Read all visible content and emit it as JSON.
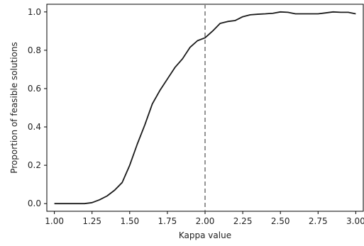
{
  "chart_data": {
    "type": "line",
    "xlabel": "Kappa value",
    "ylabel": "Proportion of feasible solutions",
    "xlim": [
      0.95,
      3.05
    ],
    "ylim": [
      -0.04,
      1.04
    ],
    "x_ticks": [
      "1.00",
      "1.25",
      "1.50",
      "1.75",
      "2.00",
      "2.25",
      "2.50",
      "2.75",
      "3.00"
    ],
    "y_ticks": [
      "0.0",
      "0.2",
      "0.4",
      "0.6",
      "0.8",
      "1.0"
    ],
    "grid": false,
    "reference_line": {
      "x": 2.0,
      "style": "dashed",
      "color": "#888888"
    },
    "line_color": "#1a1a1a",
    "series": [
      {
        "x": [
          1.0,
          1.05,
          1.1,
          1.15,
          1.2,
          1.25,
          1.3,
          1.35,
          1.4,
          1.45,
          1.5,
          1.55,
          1.6,
          1.65,
          1.7,
          1.75,
          1.8,
          1.85,
          1.9,
          1.95,
          2.0,
          2.05,
          2.1,
          2.15,
          2.2,
          2.25,
          2.3,
          2.35,
          2.4,
          2.45,
          2.5,
          2.55,
          2.6,
          2.65,
          2.7,
          2.75,
          2.8,
          2.85,
          2.9,
          2.95,
          3.0
        ],
        "y": [
          0.0,
          0.0,
          0.0,
          0.0,
          0.0,
          0.005,
          0.02,
          0.04,
          0.07,
          0.11,
          0.2,
          0.31,
          0.41,
          0.52,
          0.59,
          0.65,
          0.71,
          0.755,
          0.815,
          0.85,
          0.865,
          0.9,
          0.94,
          0.95,
          0.955,
          0.975,
          0.985,
          0.988,
          0.99,
          0.993,
          1.0,
          0.998,
          0.99,
          0.99,
          0.99,
          0.99,
          0.995,
          1.0,
          0.998,
          0.998,
          0.99
        ]
      }
    ]
  }
}
